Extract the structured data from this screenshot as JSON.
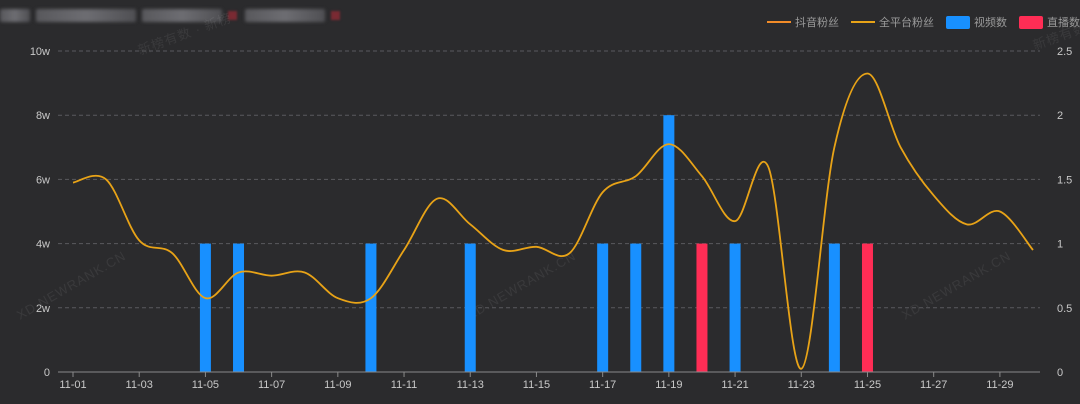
{
  "legend": [
    {
      "label": "抖音粉丝",
      "kind": "line",
      "color": "#f28c28"
    },
    {
      "label": "全平台粉丝",
      "kind": "line",
      "color": "#e8a317"
    },
    {
      "label": "视频数",
      "kind": "rect",
      "color": "#1890ff"
    },
    {
      "label": "直播数",
      "kind": "rect",
      "color": "#ff2d55"
    }
  ],
  "watermarks": [
    "新榜有数 · 新榜",
    "XD.NEWRANK.CN"
  ],
  "chart_data": {
    "type": "bar",
    "x": [
      "11-01",
      "11-02",
      "11-03",
      "11-04",
      "11-05",
      "11-06",
      "11-07",
      "11-08",
      "11-09",
      "11-10",
      "11-11",
      "11-12",
      "11-13",
      "11-14",
      "11-15",
      "11-16",
      "11-17",
      "11-18",
      "11-19",
      "11-20",
      "11-21",
      "11-22",
      "11-23",
      "11-24",
      "11-25",
      "11-26",
      "11-27",
      "11-28",
      "11-29",
      "11-30"
    ],
    "x_tick_labels": [
      "11-01",
      "11-03",
      "11-05",
      "11-07",
      "11-09",
      "11-11",
      "11-13",
      "11-15",
      "11-17",
      "11-19",
      "11-21",
      "11-23",
      "11-25",
      "11-27",
      "11-29"
    ],
    "y_left": {
      "ticks": [
        "0",
        "2w",
        "4w",
        "6w",
        "8w",
        "10w"
      ],
      "range": [
        0,
        100000
      ]
    },
    "y_right": {
      "ticks": [
        "0",
        "0.5",
        "1",
        "1.5",
        "2",
        "2.5"
      ],
      "range": [
        0,
        2.5
      ]
    },
    "series": [
      {
        "name": "全平台粉丝",
        "kind": "line",
        "axis": "left",
        "color": "#e8a317",
        "values": [
          59000,
          60000,
          41000,
          37000,
          23000,
          31000,
          30000,
          31000,
          23000,
          23000,
          38000,
          54000,
          46000,
          38000,
          39000,
          37000,
          56000,
          61000,
          71000,
          61000,
          47000,
          64000,
          1000,
          70000,
          93000,
          70000,
          55000,
          46000,
          50000,
          38000
        ]
      },
      {
        "name": "视频数",
        "kind": "bar",
        "axis": "right",
        "color": "#1890ff",
        "values": [
          0,
          0,
          0,
          0,
          1,
          1,
          0,
          0,
          0,
          1,
          0,
          0,
          1,
          0,
          0,
          0,
          1,
          1,
          2,
          0,
          1,
          0,
          0,
          1,
          0,
          0,
          0,
          0,
          0,
          0
        ]
      },
      {
        "name": "直播数",
        "kind": "bar",
        "axis": "right",
        "color": "#ff2d55",
        "values": [
          0,
          0,
          0,
          0,
          0,
          0,
          0,
          0,
          0,
          0,
          0,
          0,
          0,
          0,
          0,
          0,
          0,
          0,
          0,
          1,
          0,
          0,
          0,
          0,
          1,
          0,
          0,
          0,
          0,
          0
        ]
      }
    ],
    "grid": true,
    "legend_position": "top-right"
  }
}
